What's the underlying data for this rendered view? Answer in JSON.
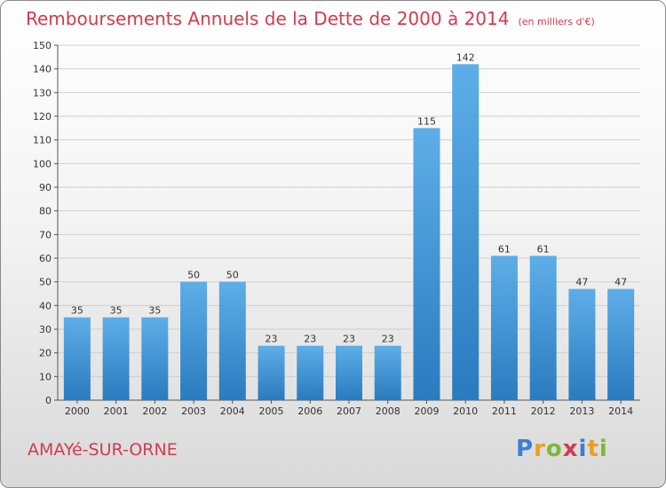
{
  "title": "Remboursements Annuels de la Dette de 2000 à 2014",
  "unit": "(en milliers d'€)",
  "commune": "AMAYé-SUR-ORNE",
  "logo": {
    "letters": [
      "P",
      "r",
      "o",
      "x",
      "i",
      "t",
      "i"
    ],
    "colors": [
      "#3a7fd5",
      "#e8a020",
      "#7cb83a",
      "#d03c50",
      "#3a7fd5",
      "#e8a020",
      "#7cb83a"
    ]
  },
  "colors": {
    "title": "#d03c50",
    "bar_top": "#5daee8",
    "bar_bottom": "#2a7bbf",
    "grid": "#cfcfcf"
  },
  "chart_data": {
    "type": "bar",
    "categories": [
      "2000",
      "2001",
      "2002",
      "2003",
      "2004",
      "2005",
      "2006",
      "2007",
      "2008",
      "2009",
      "2010",
      "2011",
      "2012",
      "2013",
      "2014"
    ],
    "values": [
      35,
      35,
      35,
      50,
      50,
      23,
      23,
      23,
      23,
      115,
      142,
      61,
      61,
      47,
      47
    ],
    "ylim": [
      0,
      150
    ],
    "yticks": [
      0,
      10,
      20,
      30,
      40,
      50,
      60,
      70,
      80,
      90,
      100,
      110,
      120,
      130,
      140,
      150
    ],
    "grid": true
  }
}
